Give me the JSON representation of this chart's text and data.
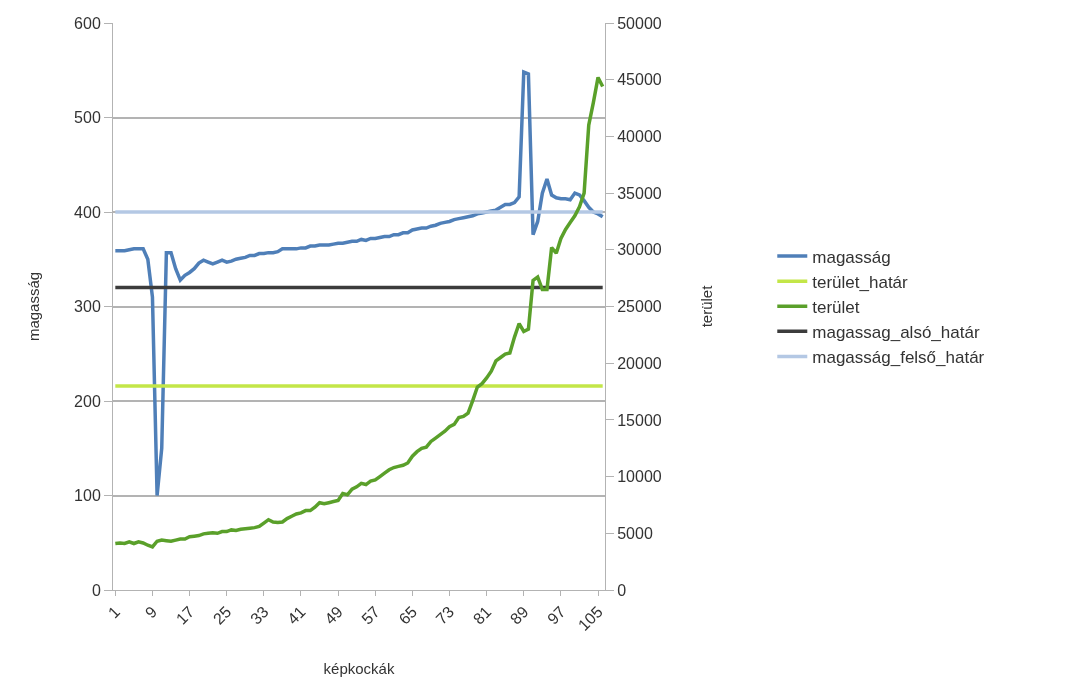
{
  "chart_data": {
    "type": "line",
    "xlabel": "képkockák",
    "ylabel": "magasság",
    "y2label": "terület",
    "categories": [
      "1",
      null,
      null,
      null,
      null,
      null,
      null,
      null,
      "9",
      null,
      null,
      null,
      null,
      null,
      null,
      null,
      "17",
      null,
      null,
      null,
      null,
      null,
      null,
      null,
      "25",
      null,
      null,
      null,
      null,
      null,
      null,
      null,
      "33",
      null,
      null,
      null,
      null,
      null,
      null,
      null,
      "41",
      null,
      null,
      null,
      null,
      null,
      null,
      null,
      "49",
      null,
      null,
      null,
      null,
      null,
      null,
      null,
      "57",
      null,
      null,
      null,
      null,
      null,
      null,
      null,
      "65",
      null,
      null,
      null,
      null,
      null,
      null,
      null,
      "73",
      null,
      null,
      null,
      null,
      null,
      null,
      null,
      "81",
      null,
      null,
      null,
      null,
      null,
      null,
      null,
      "89",
      null,
      null,
      null,
      null,
      null,
      null,
      null,
      "97",
      null,
      null,
      null,
      null,
      null,
      null,
      null,
      "105",
      null
    ],
    "ylim": [
      0,
      600
    ],
    "yticks": [
      0,
      100,
      200,
      300,
      400,
      500,
      600
    ],
    "y2lim": [
      0,
      50000
    ],
    "y2ticks": [
      0,
      5000,
      10000,
      15000,
      20000,
      25000,
      30000,
      35000,
      40000,
      45000,
      50000
    ],
    "grid": "y",
    "legend": "right",
    "marker": "none",
    "series": [
      {
        "name": "magasság",
        "color": "#4f7fb8",
        "values": [
          359,
          359,
          359,
          360,
          361,
          361,
          361,
          350,
          310,
          100,
          150,
          357,
          357,
          340,
          328,
          333,
          336,
          340,
          346,
          349,
          347,
          345,
          347,
          349,
          347,
          348,
          350,
          351,
          352,
          354,
          354,
          356,
          356,
          357,
          357,
          358,
          361,
          361,
          361,
          361,
          362,
          362,
          364,
          364,
          365,
          365,
          365,
          366,
          367,
          367,
          368,
          369,
          369,
          371,
          370,
          372,
          372,
          373,
          374,
          374,
          376,
          376,
          378,
          378,
          381,
          382,
          383,
          383,
          385,
          386,
          388,
          389,
          390,
          392,
          393,
          394,
          395,
          396,
          398,
          399,
          400,
          401,
          402,
          405,
          408,
          408,
          410,
          416,
          548,
          546,
          376,
          390,
          420,
          435,
          418,
          415,
          414,
          414,
          413,
          420,
          418,
          412,
          405,
          400,
          398,
          395
        ]
      },
      {
        "name": "terület_határ",
        "color": "#c3e648",
        "axis": "y2",
        "values": [
          18000,
          18000,
          18000,
          18000,
          18000,
          18000,
          18000,
          18000,
          18000,
          18000,
          18000,
          18000,
          18000,
          18000,
          18000,
          18000,
          18000,
          18000,
          18000,
          18000,
          18000,
          18000,
          18000,
          18000,
          18000,
          18000,
          18000,
          18000,
          18000,
          18000,
          18000,
          18000,
          18000,
          18000,
          18000,
          18000,
          18000,
          18000,
          18000,
          18000,
          18000,
          18000,
          18000,
          18000,
          18000,
          18000,
          18000,
          18000,
          18000,
          18000,
          18000,
          18000,
          18000,
          18000,
          18000,
          18000,
          18000,
          18000,
          18000,
          18000,
          18000,
          18000,
          18000,
          18000,
          18000,
          18000,
          18000,
          18000,
          18000,
          18000,
          18000,
          18000,
          18000,
          18000,
          18000,
          18000,
          18000,
          18000,
          18000,
          18000,
          18000,
          18000,
          18000,
          18000,
          18000,
          18000,
          18000,
          18000,
          18000,
          18000,
          18000,
          18000,
          18000,
          18000,
          18000,
          18000,
          18000,
          18000,
          18000,
          18000,
          18000,
          18000,
          18000,
          18000,
          18000,
          18000
        ]
      },
      {
        "name": "terület",
        "color": "#5aa02a",
        "axis": "y2",
        "values": [
          4100,
          4150,
          4100,
          4250,
          4100,
          4250,
          4150,
          3950,
          3800,
          4300,
          4400,
          4350,
          4300,
          4400,
          4500,
          4500,
          4700,
          4750,
          4800,
          4950,
          5000,
          5050,
          5000,
          5150,
          5150,
          5300,
          5250,
          5350,
          5400,
          5450,
          5500,
          5600,
          5900,
          6200,
          6000,
          5950,
          6000,
          6300,
          6500,
          6700,
          6800,
          7000,
          7000,
          7300,
          7700,
          7600,
          7700,
          7800,
          7900,
          8500,
          8400,
          8900,
          9100,
          9400,
          9300,
          9600,
          9700,
          10000,
          10300,
          10600,
          10800,
          10900,
          11000,
          11200,
          11800,
          12200,
          12500,
          12600,
          13100,
          13400,
          13700,
          14000,
          14400,
          14600,
          15200,
          15300,
          15600,
          16700,
          17900,
          18200,
          18700,
          19300,
          20200,
          20500,
          20800,
          20900,
          22300,
          23500,
          22800,
          23000,
          27300,
          27600,
          26500,
          26500,
          30200,
          29700,
          31000,
          31800,
          32400,
          33000,
          33800,
          35000,
          41000,
          43000,
          45200,
          44400
        ]
      },
      {
        "name": "magassag_alsó_határ",
        "color": "#3c3c3c",
        "values": [
          320,
          320,
          320,
          320,
          320,
          320,
          320,
          320,
          320,
          320,
          320,
          320,
          320,
          320,
          320,
          320,
          320,
          320,
          320,
          320,
          320,
          320,
          320,
          320,
          320,
          320,
          320,
          320,
          320,
          320,
          320,
          320,
          320,
          320,
          320,
          320,
          320,
          320,
          320,
          320,
          320,
          320,
          320,
          320,
          320,
          320,
          320,
          320,
          320,
          320,
          320,
          320,
          320,
          320,
          320,
          320,
          320,
          320,
          320,
          320,
          320,
          320,
          320,
          320,
          320,
          320,
          320,
          320,
          320,
          320,
          320,
          320,
          320,
          320,
          320,
          320,
          320,
          320,
          320,
          320,
          320,
          320,
          320,
          320,
          320,
          320,
          320,
          320,
          320,
          320,
          320,
          320,
          320,
          320,
          320,
          320,
          320,
          320,
          320,
          320,
          320,
          320,
          320,
          320,
          320,
          320
        ]
      },
      {
        "name": "magasság_felső_határ",
        "color": "#b4c8e4",
        "values": [
          400,
          400,
          400,
          400,
          400,
          400,
          400,
          400,
          400,
          400,
          400,
          400,
          400,
          400,
          400,
          400,
          400,
          400,
          400,
          400,
          400,
          400,
          400,
          400,
          400,
          400,
          400,
          400,
          400,
          400,
          400,
          400,
          400,
          400,
          400,
          400,
          400,
          400,
          400,
          400,
          400,
          400,
          400,
          400,
          400,
          400,
          400,
          400,
          400,
          400,
          400,
          400,
          400,
          400,
          400,
          400,
          400,
          400,
          400,
          400,
          400,
          400,
          400,
          400,
          400,
          400,
          400,
          400,
          400,
          400,
          400,
          400,
          400,
          400,
          400,
          400,
          400,
          400,
          400,
          400,
          400,
          400,
          400,
          400,
          400,
          400,
          400,
          400,
          400,
          400,
          400,
          400,
          400,
          400,
          400,
          400,
          400,
          400,
          400,
          400,
          400,
          400,
          400,
          400,
          400,
          400
        ]
      }
    ]
  }
}
